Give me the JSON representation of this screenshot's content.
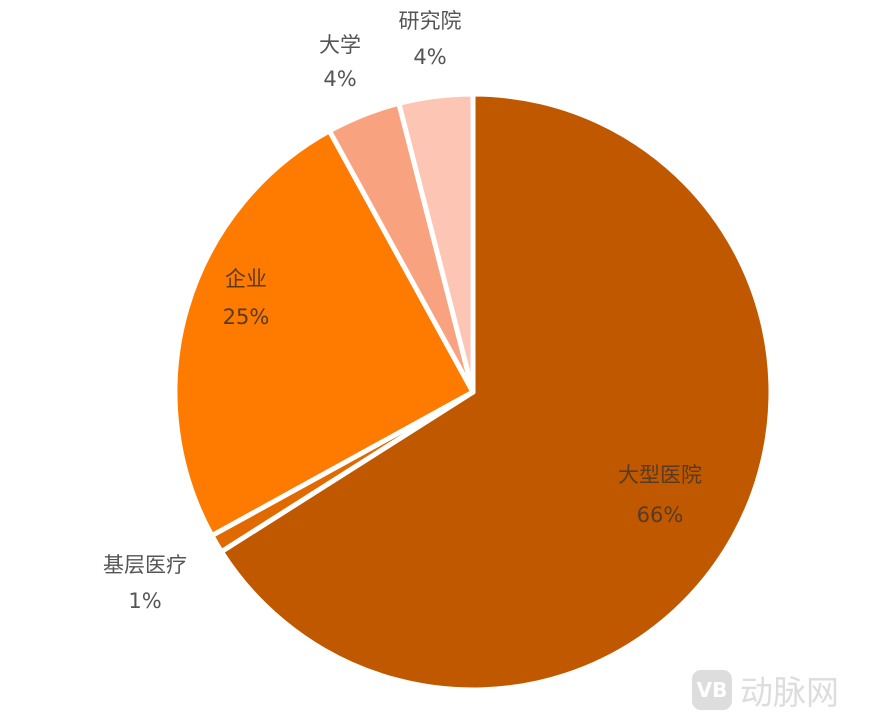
{
  "chart_data": {
    "type": "pie",
    "start": "top",
    "direction": "clockwise",
    "slices": [
      {
        "label": "大型医院",
        "value": 66,
        "pct_label": "66%",
        "color": "#c05800"
      },
      {
        "label": "基层医疗",
        "value": 1,
        "pct_label": "1%",
        "color": "#e06a00"
      },
      {
        "label": "企业",
        "value": 25,
        "pct_label": "25%",
        "color": "#ff7b00"
      },
      {
        "label": "大学",
        "value": 4,
        "pct_label": "4%",
        "color": "#f9a27f"
      },
      {
        "label": "研究院",
        "value": 4,
        "pct_label": "4%",
        "color": "#fdc6b4"
      }
    ]
  },
  "watermark": {
    "logo": "VB",
    "text": "动脉网"
  }
}
